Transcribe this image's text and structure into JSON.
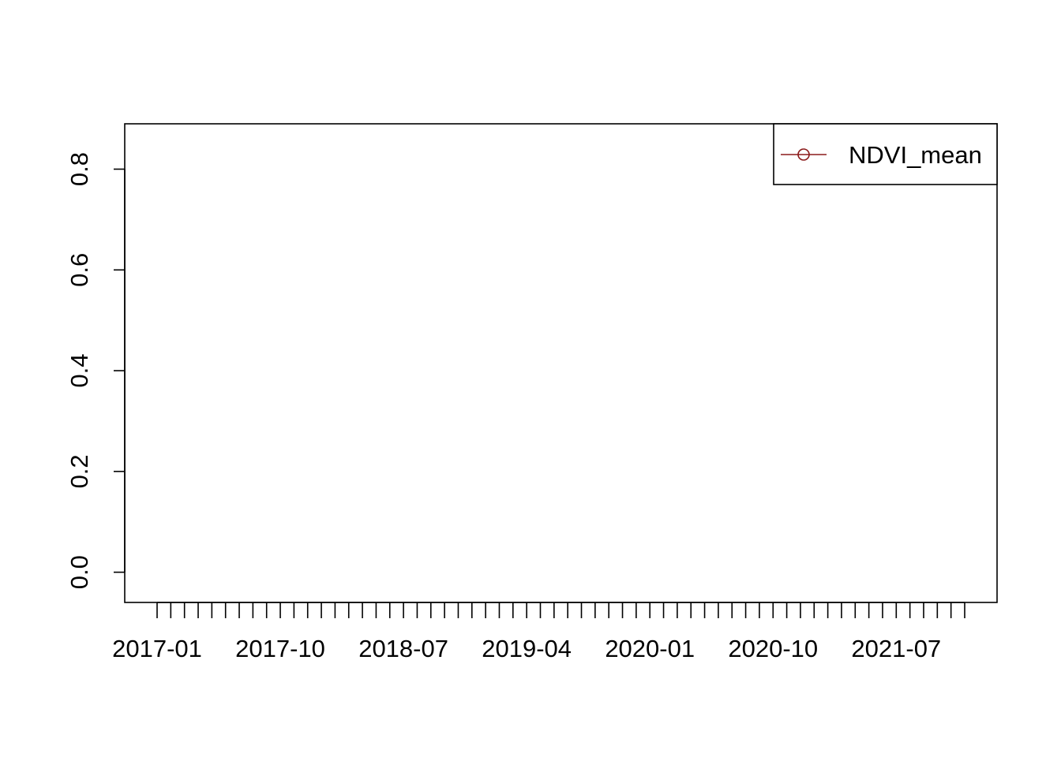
{
  "chart_data": {
    "type": "line",
    "title": "",
    "xlabel": "",
    "ylabel": "",
    "x_axis": {
      "kind": "date",
      "minor_ticks": {
        "start": "2017-01",
        "end": "2021-12",
        "step_months": 1
      },
      "labels": [
        "2017-01",
        "2017-10",
        "2018-07",
        "2019-04",
        "2020-01",
        "2020-10",
        "2021-07"
      ]
    },
    "y_axis": {
      "ylim": [
        -0.06,
        0.89
      ],
      "ticks": [
        0.0,
        0.2,
        0.4,
        0.6,
        0.8
      ],
      "tick_labels": [
        "0.0",
        "0.2",
        "0.4",
        "0.6",
        "0.8"
      ]
    },
    "grid": false,
    "legend": {
      "placement": "top-right"
    },
    "series": [
      {
        "name": "NDVI_mean",
        "color": "#8B1A1A",
        "marker": "open-circle",
        "line": "solid",
        "values": []
      }
    ]
  }
}
